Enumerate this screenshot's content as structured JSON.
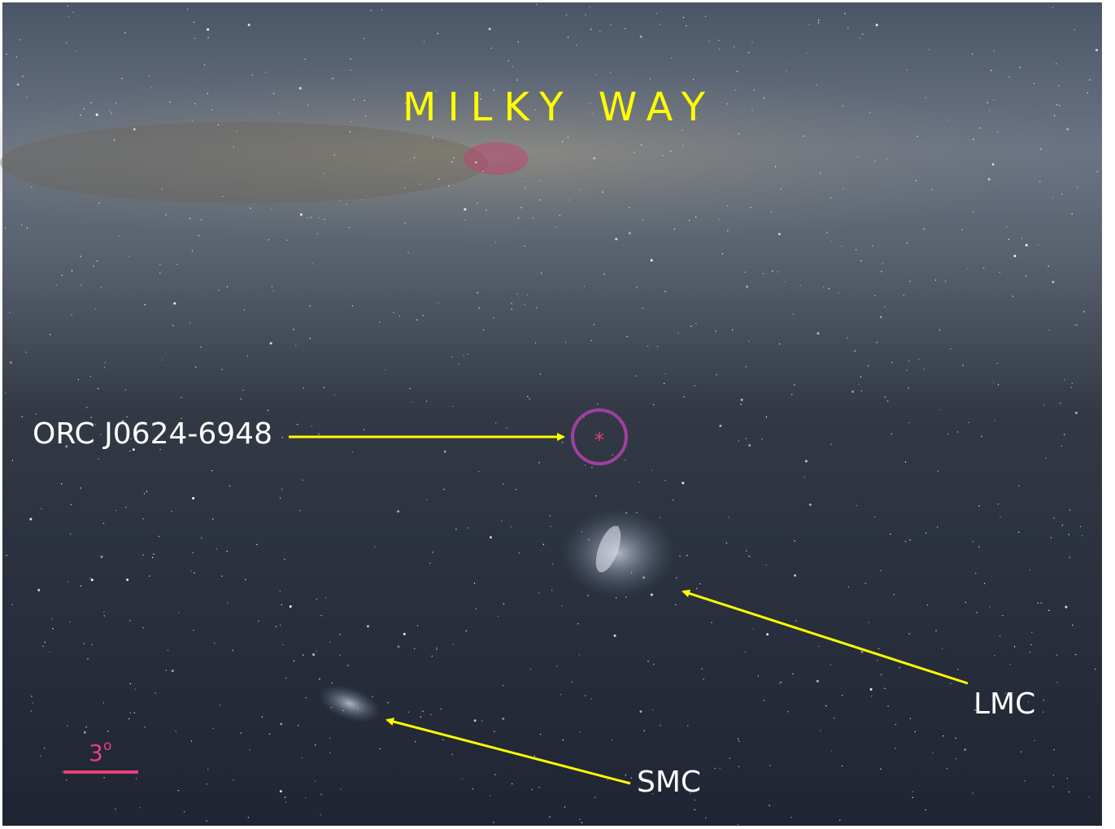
{
  "title": "MILKY WAY",
  "annotations": [
    {
      "label": "ORC J0624-6948"
    },
    {
      "label": "LMC"
    },
    {
      "label": "SMC"
    }
  ],
  "scale_bar": {
    "number": "3",
    "unit": "o"
  }
}
